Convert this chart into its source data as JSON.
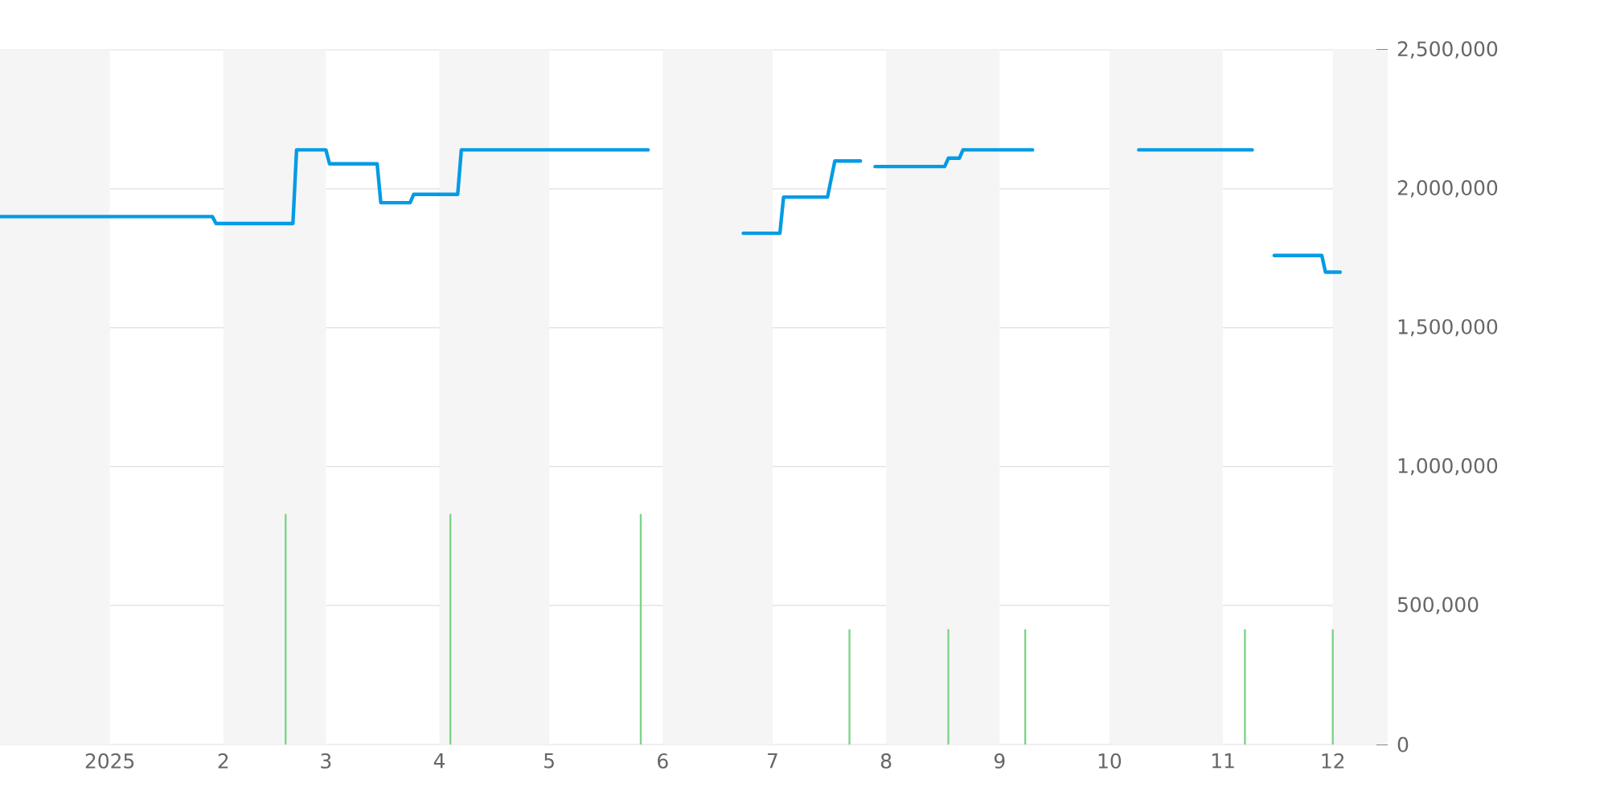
{
  "chart_data": {
    "type": "line",
    "xlim": [
      "2024-12-02",
      "2025-12-16"
    ],
    "xticks": [
      {
        "value": "2025-01-01",
        "label": "2025"
      },
      {
        "value": "2025-02-01",
        "label": "2"
      },
      {
        "value": "2025-03-01",
        "label": "3"
      },
      {
        "value": "2025-04-01",
        "label": "4"
      },
      {
        "value": "2025-05-01",
        "label": "5"
      },
      {
        "value": "2025-06-01",
        "label": "6"
      },
      {
        "value": "2025-07-01",
        "label": "7"
      },
      {
        "value": "2025-08-01",
        "label": "8"
      },
      {
        "value": "2025-09-01",
        "label": "9"
      },
      {
        "value": "2025-10-01",
        "label": "10"
      },
      {
        "value": "2025-11-01",
        "label": "11"
      },
      {
        "value": "2025-12-01",
        "label": "12"
      }
    ],
    "ylim": [
      0,
      2500000
    ],
    "yticks": [
      {
        "value": 0,
        "label": "0"
      },
      {
        "value": 500000,
        "label": "500,000"
      },
      {
        "value": 1000000,
        "label": "1,000,000"
      },
      {
        "value": 1500000,
        "label": "1,500,000"
      },
      {
        "value": 2000000,
        "label": "2,000,000"
      },
      {
        "value": 2500000,
        "label": "2,500,000"
      }
    ],
    "grid": "y",
    "bands": [
      {
        "axis": "x",
        "from": "2024-12-02",
        "to": "2025-01-01",
        "color": "#f5f5f5"
      },
      {
        "axis": "x",
        "from": "2025-02-01",
        "to": "2025-03-01",
        "color": "#f5f5f5"
      },
      {
        "axis": "x",
        "from": "2025-04-01",
        "to": "2025-05-01",
        "color": "#f5f5f5"
      },
      {
        "axis": "x",
        "from": "2025-06-01",
        "to": "2025-07-01",
        "color": "#f5f5f5"
      },
      {
        "axis": "x",
        "from": "2025-08-01",
        "to": "2025-09-01",
        "color": "#f5f5f5"
      },
      {
        "axis": "x",
        "from": "2025-10-01",
        "to": "2025-11-01",
        "color": "#f5f5f5"
      },
      {
        "axis": "x",
        "from": "2025-12-01",
        "to": "2025-12-16",
        "color": "#f5f5f5"
      }
    ],
    "series": [
      {
        "color": "#039be5",
        "x": [
          "2024-12-02",
          "2025-01-29",
          "2025-01-30",
          "2025-02-20",
          "2025-02-21",
          "2025-03-01",
          "2025-03-02",
          "2025-03-15",
          "2025-03-16",
          "2025-03-24",
          "2025-03-25",
          "2025-04-06",
          "2025-04-07",
          "2025-05-28",
          "2025-06-10",
          "2025-06-23",
          "2025-07-03",
          "2025-07-04",
          "2025-07-16",
          "2025-07-18",
          "2025-07-25",
          "2025-07-27",
          "2025-07-29",
          "2025-08-17",
          "2025-08-18",
          "2025-08-21",
          "2025-08-22",
          "2025-09-10",
          "2025-09-25",
          "2025-10-09",
          "2025-11-09",
          "2025-11-12",
          "2025-11-15",
          "2025-11-28",
          "2025-11-29",
          "2025-12-03"
        ],
        "values": [
          1900000,
          1900000,
          1875000,
          1875000,
          2140000,
          2140000,
          2090000,
          2090000,
          1950000,
          1950000,
          1980000,
          1980000,
          2140000,
          2140000,
          null,
          1840000,
          1840000,
          1970000,
          1970000,
          2100000,
          2100000,
          null,
          2080000,
          2080000,
          2110000,
          2110000,
          2140000,
          2140000,
          null,
          2140000,
          2140000,
          null,
          1760000,
          1760000,
          1700000,
          1700000
        ]
      },
      {
        "type": "bar",
        "color": "#7fd38a",
        "x": [
          "2025-02-18",
          "2025-04-04",
          "2025-05-26",
          "2025-07-22",
          "2025-08-18",
          "2025-09-08",
          "2025-11-07",
          "2025-12-01"
        ],
        "values": [
          830000,
          830000,
          830000,
          415000,
          415000,
          415000,
          415000,
          415000
        ]
      }
    ]
  }
}
